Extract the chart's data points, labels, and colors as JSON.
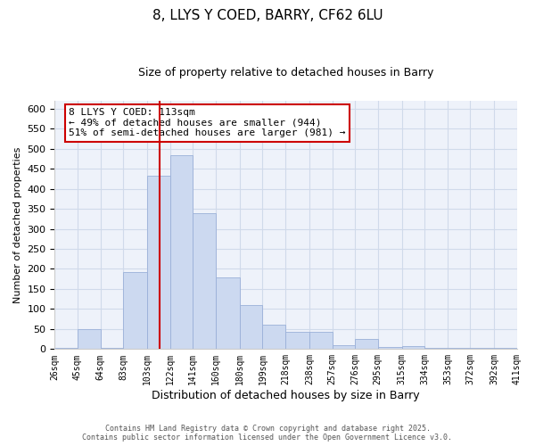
{
  "title": "8, LLYS Y COED, BARRY, CF62 6LU",
  "subtitle": "Size of property relative to detached houses in Barry",
  "xlabel": "Distribution of detached houses by size in Barry",
  "ylabel": "Number of detached properties",
  "bar_values": [
    3,
    50,
    3,
    193,
    433,
    483,
    338,
    178,
    110,
    60,
    44,
    44,
    10,
    25,
    5,
    8,
    3,
    2,
    2,
    3
  ],
  "bin_edges": [
    26,
    45,
    64,
    83,
    103,
    122,
    141,
    160,
    180,
    199,
    218,
    238,
    257,
    276,
    295,
    315,
    334,
    353,
    372,
    392,
    411
  ],
  "tick_labels": [
    "26sqm",
    "45sqm",
    "64sqm",
    "83sqm",
    "103sqm",
    "122sqm",
    "141sqm",
    "160sqm",
    "180sqm",
    "199sqm",
    "218sqm",
    "238sqm",
    "257sqm",
    "276sqm",
    "295sqm",
    "315sqm",
    "334sqm",
    "353sqm",
    "372sqm",
    "392sqm",
    "411sqm"
  ],
  "bar_color": "#ccd9f0",
  "bar_edge_color": "#9ab0d8",
  "vline_x": 113,
  "vline_color": "#cc0000",
  "ylim": [
    0,
    620
  ],
  "yticks": [
    0,
    50,
    100,
    150,
    200,
    250,
    300,
    350,
    400,
    450,
    500,
    550,
    600
  ],
  "annotation_title": "8 LLYS Y COED: 113sqm",
  "annotation_line1": "← 49% of detached houses are smaller (944)",
  "annotation_line2": "51% of semi-detached houses are larger (981) →",
  "annotation_box_color": "#ffffff",
  "annotation_box_edge": "#cc0000",
  "footer1": "Contains HM Land Registry data © Crown copyright and database right 2025.",
  "footer2": "Contains public sector information licensed under the Open Government Licence v3.0.",
  "grid_color": "#d0daea",
  "background_color": "#ffffff",
  "plot_bg_color": "#eef2fa"
}
